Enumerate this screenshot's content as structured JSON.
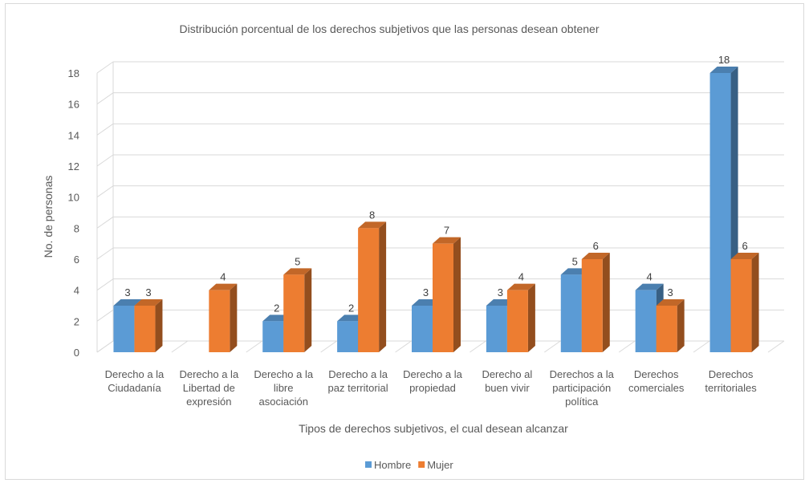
{
  "chart_data": {
    "type": "bar",
    "title": "Distribución porcentual de los derechos subjetivos que las personas desean obtener",
    "xlabel": "Tipos de derechos subjetivos, el cual desean alcanzar",
    "ylabel": "No. de personas",
    "ylim": [
      0,
      18
    ],
    "yticks": [
      "0",
      "2",
      "4",
      "6",
      "8",
      "10",
      "12",
      "14",
      "16",
      "18"
    ],
    "grid": true,
    "legend_position": "bottom",
    "categories": [
      [
        "Derecho a la",
        "Ciudadanía"
      ],
      [
        "Derecho a la",
        "Libertad de",
        "expresión"
      ],
      [
        "Derecho a la",
        "libre",
        "asociación"
      ],
      [
        "Derecho a la",
        "paz territorial"
      ],
      [
        "Derecho a la",
        "propiedad"
      ],
      [
        "Derecho al",
        "buen vivir"
      ],
      [
        "Derechos a la",
        "participación",
        "política"
      ],
      [
        "Derechos",
        "comerciales"
      ],
      [
        "Derechos",
        "territoriales"
      ]
    ],
    "series": [
      {
        "name": "Hombre",
        "color": "#5b9bd5",
        "values": [
          3,
          null,
          2,
          2,
          3,
          3,
          5,
          4,
          18
        ]
      },
      {
        "name": "Mujer",
        "color": "#ed7d31",
        "values": [
          3,
          4,
          5,
          8,
          7,
          4,
          6,
          3,
          6
        ]
      }
    ]
  }
}
